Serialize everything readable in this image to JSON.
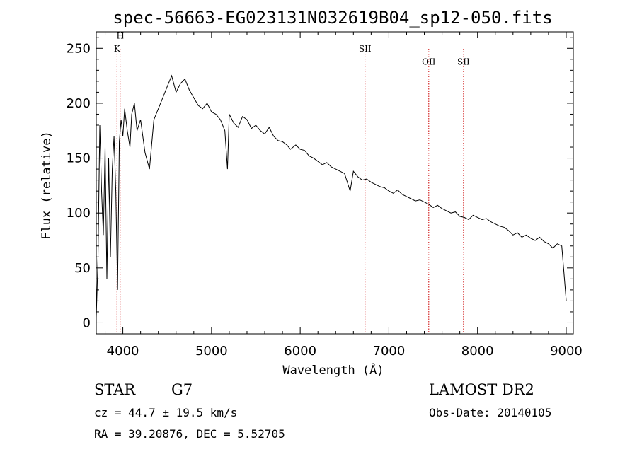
{
  "chart_data": {
    "type": "line",
    "title": "spec-56663-EG023131N032619B04_sp12-050.fits",
    "xlabel": "Wavelength (Å)",
    "ylabel": "Flux (relative)",
    "xlim": [
      3700,
      9080
    ],
    "ylim": [
      -10,
      265
    ],
    "x_ticks": [
      4000,
      5000,
      6000,
      7000,
      8000,
      9000
    ],
    "y_ticks": [
      0,
      50,
      100,
      150,
      200,
      250
    ],
    "grid": false,
    "line_color": "#000000",
    "marker_color": "#cc0000",
    "spectral_lines": [
      {
        "label": "K",
        "wavelength": 3934,
        "label_flux": 247
      },
      {
        "label": "H",
        "wavelength": 3969,
        "label_flux": 259
      },
      {
        "label": "SII",
        "wavelength": 6731,
        "label_flux": 247
      },
      {
        "label": "OII",
        "wavelength": 7450,
        "label_flux": 235
      },
      {
        "label": "SII",
        "wavelength": 7842,
        "label_flux": 235
      }
    ],
    "series": [
      {
        "x": [
          3700,
          3720,
          3740,
          3760,
          3780,
          3800,
          3820,
          3840,
          3860,
          3880,
          3900,
          3920,
          3940,
          3960,
          3980,
          4000,
          4020,
          4050,
          4080,
          4100,
          4130,
          4160,
          4200,
          4250,
          4300,
          4350,
          4400,
          4450,
          4500,
          4550,
          4600,
          4650,
          4700,
          4750,
          4800,
          4850,
          4900,
          4950,
          5000,
          5050,
          5100,
          5150,
          5180,
          5200,
          5250,
          5300,
          5350,
          5400,
          5450,
          5500,
          5550,
          5600,
          5650,
          5700,
          5750,
          5800,
          5850,
          5890,
          5950,
          6000,
          6050,
          6100,
          6150,
          6200,
          6250,
          6300,
          6350,
          6400,
          6450,
          6500,
          6563,
          6600,
          6650,
          6700,
          6750,
          6800,
          6850,
          6900,
          6950,
          7000,
          7050,
          7100,
          7150,
          7200,
          7250,
          7300,
          7350,
          7400,
          7450,
          7500,
          7550,
          7600,
          7650,
          7700,
          7750,
          7800,
          7850,
          7900,
          7950,
          8000,
          8050,
          8100,
          8150,
          8200,
          8250,
          8300,
          8350,
          8400,
          8450,
          8500,
          8550,
          8600,
          8650,
          8700,
          8750,
          8800,
          8850,
          8900,
          8950,
          9000
        ],
        "values": [
          5,
          60,
          180,
          120,
          80,
          160,
          40,
          150,
          60,
          140,
          170,
          120,
          30,
          165,
          185,
          170,
          195,
          175,
          160,
          190,
          200,
          175,
          185,
          155,
          140,
          185,
          195,
          205,
          215,
          225,
          210,
          218,
          222,
          212,
          205,
          198,
          195,
          200,
          192,
          190,
          185,
          175,
          140,
          190,
          182,
          178,
          188,
          185,
          177,
          180,
          175,
          172,
          178,
          170,
          166,
          165,
          162,
          158,
          162,
          158,
          157,
          152,
          150,
          147,
          144,
          146,
          142,
          140,
          138,
          136,
          120,
          138,
          133,
          130,
          131,
          128,
          126,
          124,
          123,
          120,
          118,
          121,
          117,
          115,
          113,
          111,
          112,
          110,
          108,
          105,
          107,
          104,
          102,
          100,
          101,
          97,
          96,
          94,
          98,
          96,
          94,
          95,
          92,
          90,
          88,
          87,
          84,
          80,
          82,
          78,
          80,
          77,
          75,
          78,
          74,
          72,
          68,
          72,
          70,
          20
        ]
      }
    ]
  },
  "info": {
    "object_class": "STAR",
    "subclass": "G7",
    "survey": "LAMOST DR2",
    "redshift": "cz = 44.7 ± 19.5 km/s",
    "obs_date": "Obs-Date: 20140105",
    "coords": "RA =  39.20876, DEC =   5.52705"
  }
}
